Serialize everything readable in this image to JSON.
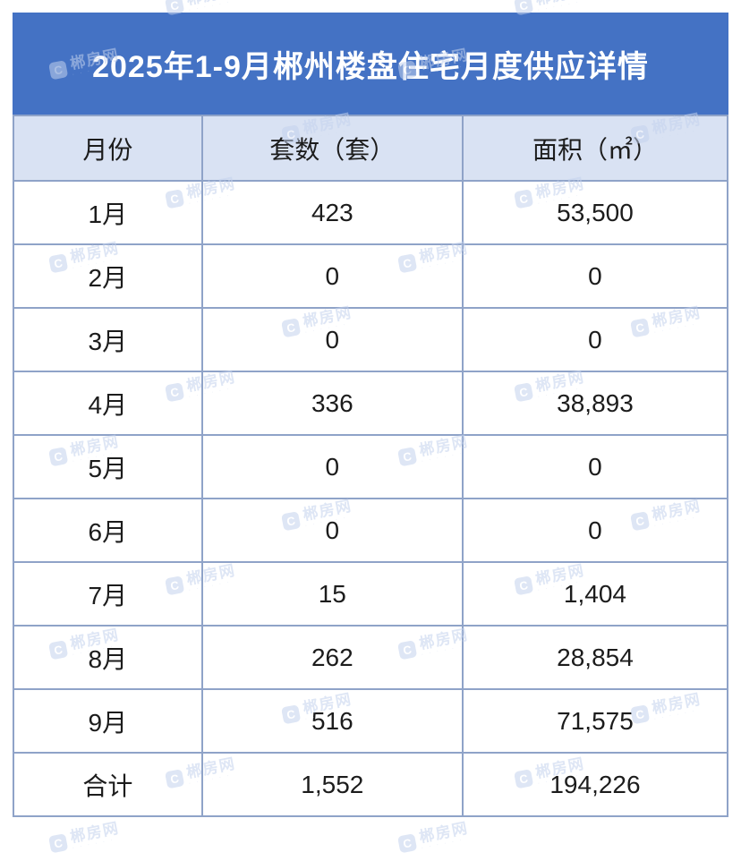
{
  "title": "2025年1-9月郴州楼盘住宅月度供应详情",
  "colors": {
    "title_bg": "#4472C4",
    "title_text": "#FFFFFF",
    "header_bg": "#D9E2F3",
    "border": "#8FA3C8",
    "text": "#1C1C1C",
    "watermark": "#C3D1EC"
  },
  "table": {
    "columns": [
      "月份",
      "套数（套）",
      "面积（㎡）"
    ],
    "rows": [
      [
        "1月",
        "423",
        "53,500"
      ],
      [
        "2月",
        "0",
        "0"
      ],
      [
        "3月",
        "0",
        "0"
      ],
      [
        "4月",
        "336",
        "38,893"
      ],
      [
        "5月",
        "0",
        "0"
      ],
      [
        "6月",
        "0",
        "0"
      ],
      [
        "7月",
        "15",
        "1,404"
      ],
      [
        "8月",
        "262",
        "28,854"
      ],
      [
        "9月",
        "516",
        "71,575"
      ],
      [
        "合计",
        "1,552",
        "194,226"
      ]
    ]
  },
  "watermark": {
    "text": "郴房网",
    "icon_letter": "C",
    "subtext": "· · · · · ·"
  },
  "chart_data": {
    "type": "table",
    "title": "2025年1-9月郴州楼盘住宅月度供应详情",
    "columns": [
      "月份",
      "套数（套）",
      "面积（㎡）"
    ],
    "categories": [
      "1月",
      "2月",
      "3月",
      "4月",
      "5月",
      "6月",
      "7月",
      "8月",
      "9月"
    ],
    "series": [
      {
        "name": "套数（套）",
        "values": [
          423,
          0,
          0,
          336,
          0,
          0,
          15,
          262,
          516
        ]
      },
      {
        "name": "面积（㎡）",
        "values": [
          53500,
          0,
          0,
          38893,
          0,
          0,
          1404,
          28854,
          71575
        ]
      }
    ],
    "totals": {
      "label": "合计",
      "套数（套）": 1552,
      "面积（㎡）": 194226
    }
  }
}
